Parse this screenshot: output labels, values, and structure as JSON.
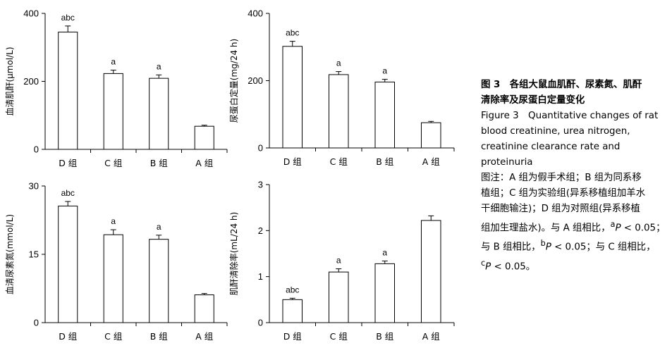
{
  "chart_data": [
    {
      "type": "bar",
      "categories": [
        "D 组",
        "C 组",
        "B 组",
        "A 组"
      ],
      "values": [
        345,
        223,
        209,
        68
      ],
      "errors": [
        18,
        10,
        10,
        3
      ],
      "sig_labels": [
        "abc",
        "a",
        "a",
        ""
      ],
      "ylabel": "血清肌酐(μmol/L)",
      "ylim": [
        0,
        400
      ],
      "yticks": [
        0,
        200,
        400
      ]
    },
    {
      "type": "bar",
      "categories": [
        "D 组",
        "C 组",
        "B 组",
        "A 组"
      ],
      "values": [
        302,
        218,
        196,
        75
      ],
      "errors": [
        15,
        9,
        8,
        4
      ],
      "sig_labels": [
        "abc",
        "a",
        "a",
        ""
      ],
      "ylabel": "尿蛋白定量(mg/24 h)",
      "ylim": [
        0,
        400
      ],
      "yticks": [
        0,
        200,
        400
      ]
    },
    {
      "type": "bar",
      "categories": [
        "D 组",
        "C 组",
        "B 组",
        "A 组"
      ],
      "values": [
        25.6,
        19.3,
        18.3,
        6.1
      ],
      "errors": [
        1.0,
        1.1,
        0.9,
        0.3
      ],
      "sig_labels": [
        "abc",
        "a",
        "a",
        ""
      ],
      "ylabel": "血清尿素氮(mmol/L)",
      "ylim": [
        0,
        30
      ],
      "yticks": [
        0,
        15,
        30
      ]
    },
    {
      "type": "bar",
      "categories": [
        "D 组",
        "C 组",
        "B 组",
        "A 组"
      ],
      "values": [
        0.5,
        1.1,
        1.28,
        2.22
      ],
      "errors": [
        0.03,
        0.07,
        0.06,
        0.1
      ],
      "sig_labels": [
        "abc",
        "a",
        "a",
        ""
      ],
      "ylabel": "肌酐清除率(mL/24 h)",
      "ylim": [
        0,
        3
      ],
      "yticks": [
        0,
        1,
        2,
        3
      ]
    }
  ],
  "caption": {
    "title_zh_1": "图 3　各组大鼠血肌酐、尿素氮、肌酐",
    "title_zh_2": "清除率及尿蛋白定量变化",
    "title_en_1": "Figure 3　Quantitative changes of rat",
    "title_en_2": "blood creatinine, urea nitrogen,",
    "title_en_3": "creatinine clearance rate and",
    "title_en_4": "proteinuria",
    "note_1": "图注：A 组为假手术组；B 组为同系移",
    "note_2": "植组；C 组为实验组(异系移植组加羊水",
    "note_3": "干细胞输注)；D 组为对照组(异系移植",
    "note_4a": "组加生理盐水)。与 A 组相比，",
    "note_4b": "a",
    "note_4c": "P",
    "note_4d": " < 0.05；",
    "note_5a": "与 B 组相比，",
    "note_5b": "b",
    "note_5c": "P",
    "note_5d": " < 0.05；与 C 组相比，",
    "note_6a": "c",
    "note_6b": "P",
    "note_6c": " < 0.05。"
  }
}
